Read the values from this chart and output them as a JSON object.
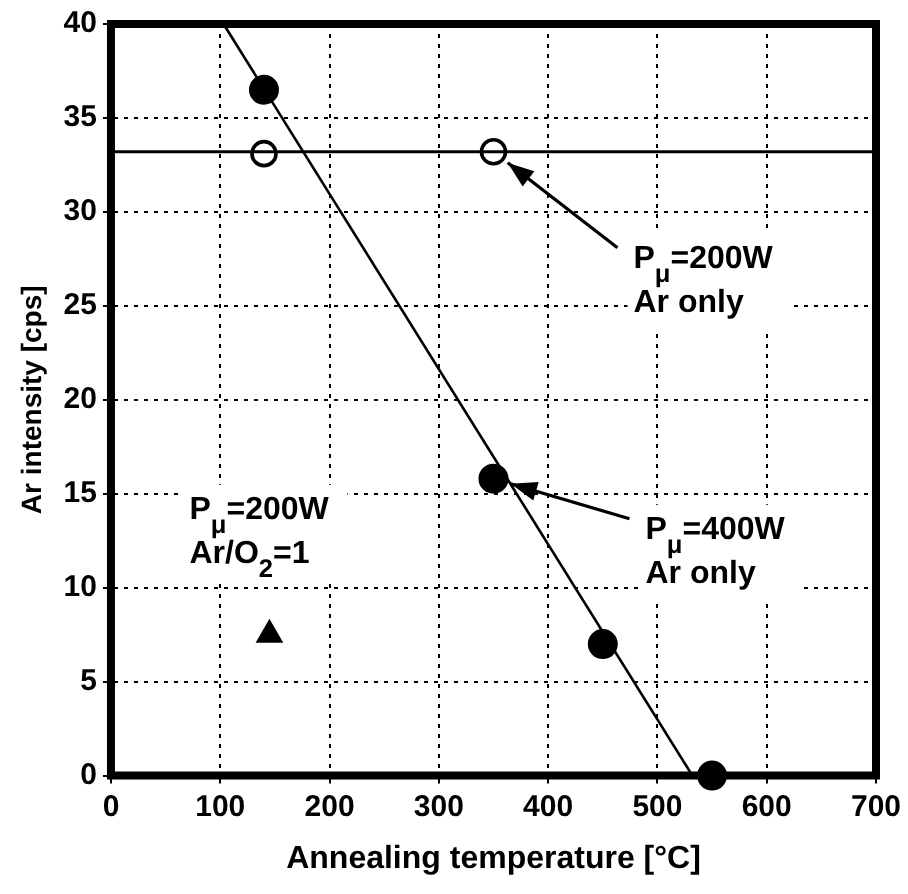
{
  "chart_data": {
    "type": "scatter",
    "xlabel": "Annealing temperature [°C]",
    "ylabel": "Ar intensity [cps]",
    "xlim": [
      0,
      700
    ],
    "xticks": [
      0,
      100,
      200,
      300,
      400,
      500,
      600,
      700
    ],
    "ylim": [
      0,
      40
    ],
    "yticks": [
      0,
      5,
      10,
      15,
      20,
      25,
      30,
      35,
      40
    ],
    "grid": true,
    "legend": false,
    "series": [
      {
        "type": "scatter",
        "marker": "circle",
        "color": "#000000",
        "x": [
          140,
          350,
          450,
          550
        ],
        "values": [
          36.5,
          15.8,
          7,
          0
        ]
      },
      {
        "type": "scatter",
        "marker": "circle",
        "color": "#000000",
        "x": [
          140,
          350
        ],
        "values": [
          33.1,
          33.2
        ]
      },
      {
        "type": "scatter",
        "marker": "triangle",
        "color": "#000000",
        "x": [
          145
        ],
        "values": [
          7.5
        ]
      },
      {
        "type": "line",
        "marker": "none",
        "color": "#000000",
        "x": [
          103,
          532
        ],
        "values": [
          40,
          0
        ]
      }
    ],
    "ref_lines": [
      {
        "axis": "y",
        "value": 33.2,
        "color": "#000000"
      }
    ],
    "annotations": [
      {
        "text": "P$_{μ}$=200W\nAr only",
        "x": 350,
        "y": 33.2
      },
      {
        "text": "P$_{μ}$=400W\nAr only",
        "x": 350,
        "y": 15.8
      },
      "P$_{μ}$=200W\nAr/O$_{2}$=1"
    ]
  }
}
